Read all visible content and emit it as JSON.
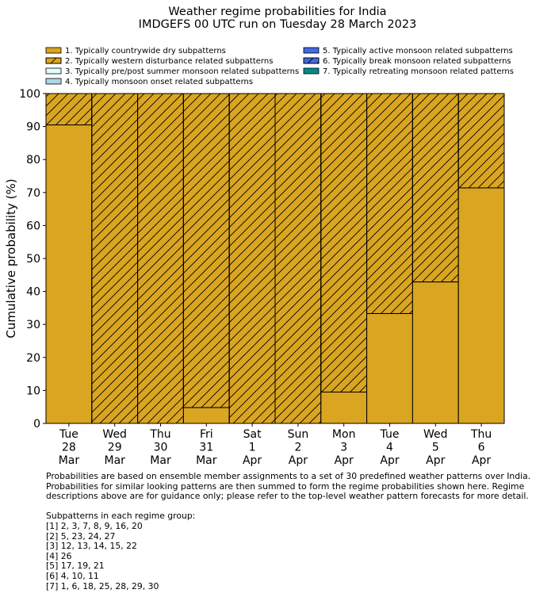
{
  "chart_data": {
    "type": "bar",
    "stacked": true,
    "title": "Weather regime probabilities for India",
    "subtitle": "IMDGEFS 00 UTC run on Tuesday 28 March 2023",
    "ylabel": "Cumulative probability (%)",
    "xlabel": "",
    "ylim": [
      0,
      100
    ],
    "yticks": [
      0,
      10,
      20,
      30,
      40,
      50,
      60,
      70,
      80,
      90,
      100
    ],
    "categories": [
      [
        "Tue",
        "28",
        "Mar"
      ],
      [
        "Wed",
        "29",
        "Mar"
      ],
      [
        "Thu",
        "30",
        "Mar"
      ],
      [
        "Fri",
        "31",
        "Mar"
      ],
      [
        "Sat",
        "1",
        "Apr"
      ],
      [
        "Sun",
        "2",
        "Apr"
      ],
      [
        "Mon",
        "3",
        "Apr"
      ],
      [
        "Tue",
        "4",
        "Apr"
      ],
      [
        "Wed",
        "5",
        "Apr"
      ],
      [
        "Thu",
        "6",
        "Apr"
      ]
    ],
    "legend_position": "top",
    "series": [
      {
        "name": "1. Typically countrywide dry subpatterns",
        "color": "#DAA520",
        "hatch": false,
        "values": [
          90.5,
          0,
          0,
          4.8,
          0,
          0,
          9.5,
          33.3,
          42.9,
          71.4
        ]
      },
      {
        "name": "2. Typically western disturbance related subpatterns",
        "color": "#DAA520",
        "hatch": true,
        "values": [
          9.5,
          100,
          100,
          95.2,
          100,
          100,
          90.5,
          66.7,
          57.1,
          28.6
        ]
      },
      {
        "name": "3. Typically pre/post summer monsoon related subpatterns",
        "color": "#E0FFFF",
        "hatch": false,
        "values": [
          0,
          0,
          0,
          0,
          0,
          0,
          0,
          0,
          0,
          0
        ]
      },
      {
        "name": "4. Typically monsoon onset related subpatterns",
        "color": "#ADD8E6",
        "hatch": false,
        "values": [
          0,
          0,
          0,
          0,
          0,
          0,
          0,
          0,
          0,
          0
        ]
      },
      {
        "name": "5. Typically active monsoon related subpatterns",
        "color": "#4169E1",
        "hatch": false,
        "values": [
          0,
          0,
          0,
          0,
          0,
          0,
          0,
          0,
          0,
          0
        ]
      },
      {
        "name": "6. Typically break monsoon related subpatterns",
        "color": "#4169E1",
        "hatch": true,
        "values": [
          0,
          0,
          0,
          0,
          0,
          0,
          0,
          0,
          0,
          0
        ]
      },
      {
        "name": "7. Typically retreating monsoon related patterns",
        "color": "#008B8B",
        "hatch": false,
        "values": [
          0,
          0,
          0,
          0,
          0,
          0,
          0,
          0,
          0,
          0
        ]
      }
    ]
  },
  "notes": {
    "text": "Probabilities are based on ensemble member assignments to a set of 30 predefined weather patterns over India.\nProbabilities for similar looking patterns are then summed to form the regime probabilities shown here. Regime\ndescriptions above are for guidance only; please refer to the top-level weather pattern forecasts for more detail.\n\nSubpatterns in each regime group:\n[1] 2, 3, 7, 8, 9, 16, 20\n[2] 5, 23, 24, 27\n[3] 12, 13, 14, 15, 22\n[4] 26\n[5] 17, 19, 21\n[6] 4, 10, 11\n[7] 1, 6, 18, 25, 28, 29, 30"
  }
}
